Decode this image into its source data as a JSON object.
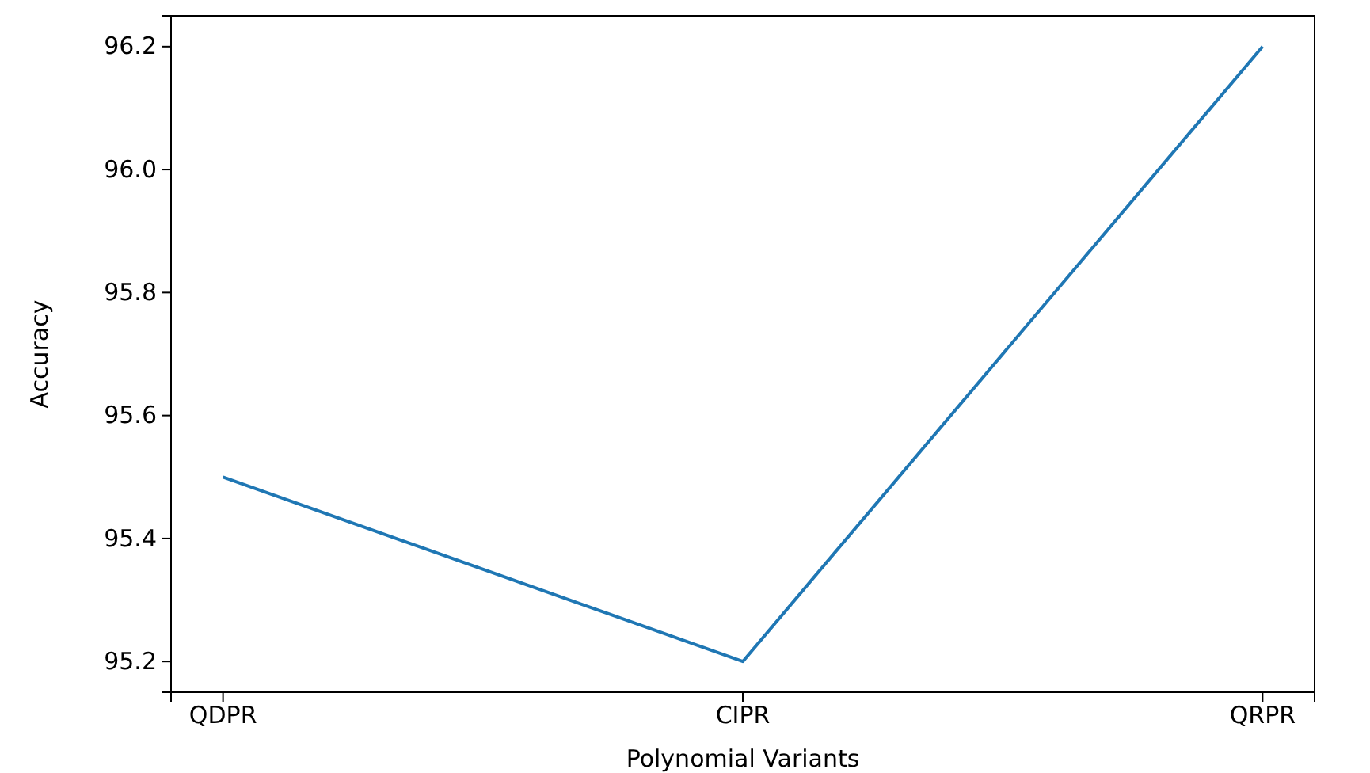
{
  "chart_data": {
    "type": "line",
    "xlabel": "Polynomial Variants",
    "ylabel": "Accuracy",
    "categories": [
      "QDPR",
      "CIPR",
      "QRPR"
    ],
    "series": [
      {
        "color": "#1f77b4",
        "values": [
          95.5,
          95.2,
          96.2
        ]
      }
    ],
    "ylim": [
      95.15,
      96.25
    ],
    "yticks": [
      {
        "value": 95.2,
        "label": "95.2"
      },
      {
        "value": 95.4,
        "label": "95.4"
      },
      {
        "value": 95.6,
        "label": "95.6"
      },
      {
        "value": 95.8,
        "label": "95.8"
      },
      {
        "value": 96.0,
        "label": "96.0"
      },
      {
        "value": 96.2,
        "label": "96.2"
      }
    ],
    "marker": "none",
    "line_style": "solid"
  }
}
